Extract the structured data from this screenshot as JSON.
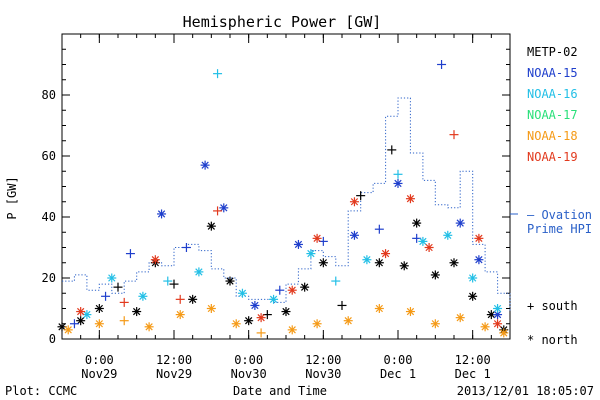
{
  "chart_data": {
    "type": "scatter",
    "title": "Hemispheric Power [GW]",
    "ylabel": "P [GW]",
    "xlabel": "Date and Time",
    "ylim": [
      0,
      100
    ],
    "yticks": [
      0,
      20,
      40,
      60,
      80
    ],
    "xlim": [
      "2013-11-28 18:00",
      "2013-12-01 18:00"
    ],
    "xticks": [
      {
        "t": "2013-11-29 00:00",
        "line1": "0:00",
        "line2": "Nov29"
      },
      {
        "t": "2013-11-29 12:00",
        "line1": "12:00",
        "line2": "Nov29"
      },
      {
        "t": "2013-11-30 00:00",
        "line1": "0:00",
        "line2": "Nov30"
      },
      {
        "t": "2013-11-30 12:00",
        "line1": "12:00",
        "line2": "Nov30"
      },
      {
        "t": "2013-12-01 00:00",
        "line1": "0:00",
        "line2": "Dec 1"
      },
      {
        "t": "2013-12-01 12:00",
        "line1": "12:00",
        "line2": "Dec 1"
      }
    ],
    "footer_left": "Plot: CCMC",
    "footer_right": "2013/12/01 18:05:07",
    "legend": {
      "satellites": [
        {
          "name": "METP-02",
          "color": "#000000"
        },
        {
          "name": "NOAA-15",
          "color": "#1f3fcc"
        },
        {
          "name": "NOAA-16",
          "color": "#22bfe6"
        },
        {
          "name": "NOAA-17",
          "color": "#29e07a"
        },
        {
          "name": "NOAA-18",
          "color": "#f59a16"
        },
        {
          "name": "NOAA-19",
          "color": "#e23a1e"
        }
      ],
      "ovation_line1": "– Ovation",
      "ovation_line2": "Prime HPI",
      "ovation_color": "#2a60c8",
      "south_label": "+ south",
      "north_label": "* north"
    },
    "ovation_series": {
      "name": "Ovation Prime HPI",
      "x_hours": [
        0,
        2,
        4,
        6,
        8,
        10,
        12,
        14,
        16,
        18,
        20,
        22,
        24,
        26,
        28,
        30,
        32,
        34,
        36,
        38,
        40,
        42,
        44,
        46,
        48,
        50,
        52,
        54,
        56,
        58,
        60,
        62,
        64,
        66,
        68,
        70,
        72
      ],
      "y": [
        19,
        21,
        16,
        18,
        15,
        19,
        22,
        25,
        24,
        30,
        31,
        29,
        23,
        20,
        14,
        13,
        13,
        12,
        18,
        23,
        29,
        27,
        24,
        42,
        48,
        51,
        73,
        79,
        61,
        52,
        44,
        43,
        55,
        31,
        22,
        15,
        9
      ]
    },
    "series": [
      {
        "name": "METP-02",
        "color": "#000000",
        "points": [
          {
            "t": "2013-11-28 18:00",
            "y": 4,
            "hemi": "north"
          },
          {
            "t": "2013-11-28 21:00",
            "y": 6,
            "hemi": "north"
          },
          {
            "t": "2013-11-29 00:00",
            "y": 10,
            "hemi": "north"
          },
          {
            "t": "2013-11-29 03:00",
            "y": 17,
            "hemi": "south"
          },
          {
            "t": "2013-11-29 06:00",
            "y": 9,
            "hemi": "north"
          },
          {
            "t": "2013-11-29 09:00",
            "y": 25,
            "hemi": "north"
          },
          {
            "t": "2013-11-29 12:00",
            "y": 18,
            "hemi": "south"
          },
          {
            "t": "2013-11-29 15:00",
            "y": 13,
            "hemi": "north"
          },
          {
            "t": "2013-11-29 18:00",
            "y": 37,
            "hemi": "north"
          },
          {
            "t": "2013-11-29 21:00",
            "y": 19,
            "hemi": "north"
          },
          {
            "t": "2013-11-30 00:00",
            "y": 6,
            "hemi": "north"
          },
          {
            "t": "2013-11-30 03:00",
            "y": 8,
            "hemi": "south"
          },
          {
            "t": "2013-11-30 06:00",
            "y": 9,
            "hemi": "north"
          },
          {
            "t": "2013-11-30 09:00",
            "y": 17,
            "hemi": "north"
          },
          {
            "t": "2013-11-30 12:00",
            "y": 25,
            "hemi": "north"
          },
          {
            "t": "2013-11-30 15:00",
            "y": 11,
            "hemi": "south"
          },
          {
            "t": "2013-11-30 18:00",
            "y": 47,
            "hemi": "south"
          },
          {
            "t": "2013-11-30 21:00",
            "y": 25,
            "hemi": "north"
          },
          {
            "t": "2013-11-30 23:00",
            "y": 62,
            "hemi": "south"
          },
          {
            "t": "2013-12-01 01:00",
            "y": 24,
            "hemi": "north"
          },
          {
            "t": "2013-12-01 03:00",
            "y": 38,
            "hemi": "north"
          },
          {
            "t": "2013-12-01 06:00",
            "y": 21,
            "hemi": "north"
          },
          {
            "t": "2013-12-01 09:00",
            "y": 25,
            "hemi": "north"
          },
          {
            "t": "2013-12-01 12:00",
            "y": 14,
            "hemi": "north"
          },
          {
            "t": "2013-12-01 15:00",
            "y": 8,
            "hemi": "north"
          },
          {
            "t": "2013-12-01 17:00",
            "y": 3,
            "hemi": "north"
          }
        ]
      },
      {
        "name": "NOAA-15",
        "color": "#1f3fcc",
        "points": [
          {
            "t": "2013-11-28 20:00",
            "y": 5,
            "hemi": "south"
          },
          {
            "t": "2013-11-29 01:00",
            "y": 14,
            "hemi": "south"
          },
          {
            "t": "2013-11-29 05:00",
            "y": 28,
            "hemi": "south"
          },
          {
            "t": "2013-11-29 10:00",
            "y": 41,
            "hemi": "north"
          },
          {
            "t": "2013-11-29 14:00",
            "y": 30,
            "hemi": "south"
          },
          {
            "t": "2013-11-29 17:00",
            "y": 57,
            "hemi": "north"
          },
          {
            "t": "2013-11-29 20:00",
            "y": 43,
            "hemi": "north"
          },
          {
            "t": "2013-11-30 01:00",
            "y": 11,
            "hemi": "north"
          },
          {
            "t": "2013-11-30 05:00",
            "y": 16,
            "hemi": "south"
          },
          {
            "t": "2013-11-30 08:00",
            "y": 31,
            "hemi": "north"
          },
          {
            "t": "2013-11-30 12:00",
            "y": 32,
            "hemi": "south"
          },
          {
            "t": "2013-11-30 17:00",
            "y": 34,
            "hemi": "north"
          },
          {
            "t": "2013-11-30 21:00",
            "y": 36,
            "hemi": "south"
          },
          {
            "t": "2013-12-01 00:00",
            "y": 51,
            "hemi": "north"
          },
          {
            "t": "2013-12-01 03:00",
            "y": 33,
            "hemi": "south"
          },
          {
            "t": "2013-12-01 07:00",
            "y": 90,
            "hemi": "south"
          },
          {
            "t": "2013-12-01 10:00",
            "y": 38,
            "hemi": "north"
          },
          {
            "t": "2013-12-01 13:00",
            "y": 26,
            "hemi": "north"
          },
          {
            "t": "2013-12-01 16:00",
            "y": 8,
            "hemi": "north"
          }
        ]
      },
      {
        "name": "NOAA-16",
        "color": "#22bfe6",
        "points": [
          {
            "t": "2013-11-28 22:00",
            "y": 8,
            "hemi": "north"
          },
          {
            "t": "2013-11-29 02:00",
            "y": 20,
            "hemi": "north"
          },
          {
            "t": "2013-11-29 07:00",
            "y": 14,
            "hemi": "north"
          },
          {
            "t": "2013-11-29 11:00",
            "y": 19,
            "hemi": "south"
          },
          {
            "t": "2013-11-29 16:00",
            "y": 22,
            "hemi": "north"
          },
          {
            "t": "2013-11-29 19:00",
            "y": 87,
            "hemi": "south"
          },
          {
            "t": "2013-11-29 23:00",
            "y": 15,
            "hemi": "north"
          },
          {
            "t": "2013-11-30 04:00",
            "y": 13,
            "hemi": "north"
          },
          {
            "t": "2013-11-30 10:00",
            "y": 28,
            "hemi": "north"
          },
          {
            "t": "2013-11-30 14:00",
            "y": 19,
            "hemi": "south"
          },
          {
            "t": "2013-11-30 19:00",
            "y": 26,
            "hemi": "north"
          },
          {
            "t": "2013-12-01 00:00",
            "y": 54,
            "hemi": "south"
          },
          {
            "t": "2013-12-01 04:00",
            "y": 32,
            "hemi": "north"
          },
          {
            "t": "2013-12-01 08:00",
            "y": 34,
            "hemi": "north"
          },
          {
            "t": "2013-12-01 12:00",
            "y": 20,
            "hemi": "north"
          },
          {
            "t": "2013-12-01 16:00",
            "y": 10,
            "hemi": "north"
          }
        ]
      },
      {
        "name": "NOAA-17",
        "color": "#29e07a",
        "points": []
      },
      {
        "name": "NOAA-18",
        "color": "#f59a16",
        "points": [
          {
            "t": "2013-11-28 19:00",
            "y": 3,
            "hemi": "north"
          },
          {
            "t": "2013-11-29 00:00",
            "y": 5,
            "hemi": "north"
          },
          {
            "t": "2013-11-29 04:00",
            "y": 6,
            "hemi": "south"
          },
          {
            "t": "2013-11-29 08:00",
            "y": 4,
            "hemi": "north"
          },
          {
            "t": "2013-11-29 13:00",
            "y": 8,
            "hemi": "north"
          },
          {
            "t": "2013-11-29 18:00",
            "y": 10,
            "hemi": "north"
          },
          {
            "t": "2013-11-29 22:00",
            "y": 5,
            "hemi": "north"
          },
          {
            "t": "2013-11-30 02:00",
            "y": 2,
            "hemi": "south"
          },
          {
            "t": "2013-11-30 07:00",
            "y": 3,
            "hemi": "north"
          },
          {
            "t": "2013-11-30 11:00",
            "y": 5,
            "hemi": "north"
          },
          {
            "t": "2013-11-30 16:00",
            "y": 6,
            "hemi": "north"
          },
          {
            "t": "2013-11-30 21:00",
            "y": 10,
            "hemi": "north"
          },
          {
            "t": "2013-12-01 02:00",
            "y": 9,
            "hemi": "north"
          },
          {
            "t": "2013-12-01 06:00",
            "y": 5,
            "hemi": "north"
          },
          {
            "t": "2013-12-01 10:00",
            "y": 7,
            "hemi": "north"
          },
          {
            "t": "2013-12-01 14:00",
            "y": 4,
            "hemi": "north"
          },
          {
            "t": "2013-12-01 17:00",
            "y": 2,
            "hemi": "north"
          }
        ]
      },
      {
        "name": "NOAA-19",
        "color": "#e23a1e",
        "points": [
          {
            "t": "2013-11-28 21:00",
            "y": 9,
            "hemi": "north"
          },
          {
            "t": "2013-11-29 04:00",
            "y": 12,
            "hemi": "south"
          },
          {
            "t": "2013-11-29 09:00",
            "y": 26,
            "hemi": "north"
          },
          {
            "t": "2013-11-29 13:00",
            "y": 13,
            "hemi": "south"
          },
          {
            "t": "2013-11-29 19:00",
            "y": 42,
            "hemi": "south"
          },
          {
            "t": "2013-11-30 02:00",
            "y": 7,
            "hemi": "north"
          },
          {
            "t": "2013-11-30 07:00",
            "y": 16,
            "hemi": "north"
          },
          {
            "t": "2013-11-30 11:00",
            "y": 33,
            "hemi": "north"
          },
          {
            "t": "2013-11-30 17:00",
            "y": 45,
            "hemi": "north"
          },
          {
            "t": "2013-11-30 22:00",
            "y": 28,
            "hemi": "north"
          },
          {
            "t": "2013-12-01 02:00",
            "y": 46,
            "hemi": "north"
          },
          {
            "t": "2013-12-01 05:00",
            "y": 30,
            "hemi": "north"
          },
          {
            "t": "2013-12-01 09:00",
            "y": 67,
            "hemi": "south"
          },
          {
            "t": "2013-12-01 13:00",
            "y": 33,
            "hemi": "north"
          },
          {
            "t": "2013-12-01 16:00",
            "y": 5,
            "hemi": "north"
          }
        ]
      }
    ]
  }
}
